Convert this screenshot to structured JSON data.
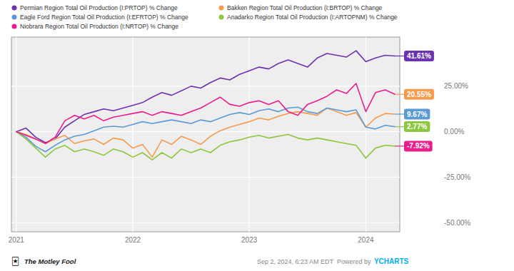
{
  "chart_data": {
    "type": "line",
    "categories": [
      "2021",
      null,
      null,
      null,
      null,
      null,
      null,
      null,
      null,
      null,
      null,
      null,
      "2022",
      null,
      null,
      null,
      null,
      null,
      null,
      null,
      null,
      null,
      null,
      null,
      "2023",
      null,
      null,
      null,
      null,
      null,
      null,
      null,
      null,
      null,
      null,
      null,
      "2024",
      null,
      null,
      null
    ],
    "series": [
      {
        "name": "Permian Region Total Oil Production (I:PRTOP) % Change",
        "color": "#6B33B0",
        "values": [
          0.0,
          2.0,
          -3.0,
          -6.0,
          -4.0,
          2.5,
          6.0,
          9.5,
          11.0,
          12.5,
          11.5,
          13.0,
          14.5,
          16.0,
          19.0,
          21.5,
          20.0,
          22.5,
          25.0,
          24.0,
          27.0,
          29.5,
          28.5,
          31.5,
          33.5,
          35.5,
          34.5,
          37.5,
          39.5,
          37.5,
          35.5,
          40.5,
          43.0,
          42.0,
          41.0,
          44.5,
          38.5,
          40.5,
          42.0,
          41.61
        ]
      },
      {
        "name": "Bakken Region Total Oil Production (I:BRTOP) % Change",
        "color": "#F59B4E",
        "values": [
          0.0,
          -1.5,
          -4.0,
          -6.5,
          -4.0,
          -2.0,
          -6.5,
          -5.0,
          -4.0,
          -7.0,
          -3.5,
          -4.5,
          -9.0,
          -7.0,
          -14.0,
          -4.5,
          -7.0,
          -2.5,
          -4.5,
          -7.0,
          -2.5,
          0.5,
          2.5,
          4.0,
          5.5,
          7.5,
          6.5,
          8.5,
          10.0,
          11.0,
          10.0,
          9.0,
          13.0,
          11.0,
          9.0,
          10.5,
          2.5,
          7.5,
          10.0,
          9.67
        ]
      },
      {
        "name": "Eagle Ford Region Total Oil Production (I:EFRTOP) % Change",
        "color": "#5B9BD5",
        "values": [
          0.0,
          -3.0,
          -8.0,
          -11.0,
          -7.5,
          -4.5,
          -2.5,
          -1.5,
          0.5,
          2.5,
          3.0,
          2.5,
          4.0,
          5.5,
          4.5,
          5.5,
          6.5,
          5.5,
          4.5,
          6.5,
          5.5,
          7.5,
          9.5,
          10.5,
          9.5,
          11.5,
          12.5,
          11.0,
          13.0,
          13.5,
          11.0,
          10.0,
          13.0,
          12.0,
          11.0,
          12.0,
          2.5,
          1.5,
          3.5,
          2.77
        ]
      },
      {
        "name": "Anadarko Region Total Oil Production (I:ARTOPNM) % Change",
        "color": "#8DC63F",
        "values": [
          0.0,
          -4.0,
          -9.0,
          -14.0,
          -9.5,
          -7.5,
          -11.0,
          -9.5,
          -11.0,
          -13.0,
          -9.5,
          -11.0,
          -14.0,
          -11.5,
          -15.5,
          -11.5,
          -14.5,
          -9.5,
          -11.5,
          -9.5,
          -11.5,
          -7.5,
          -5.5,
          -4.5,
          -3.0,
          -2.0,
          -3.5,
          -2.5,
          -1.5,
          -3.5,
          -4.5,
          -3.5,
          -4.5,
          -5.5,
          -6.5,
          -7.5,
          -14.5,
          -9.0,
          -7.5,
          -7.92
        ]
      },
      {
        "name": "Niobrara Region Total Oil Production (I:NRTOP) % Change",
        "color": "#E91E8C",
        "values": [
          0.0,
          -2.0,
          -4.0,
          -6.5,
          -3.0,
          6.0,
          9.0,
          7.0,
          9.0,
          6.0,
          8.0,
          9.0,
          10.0,
          11.0,
          9.0,
          11.0,
          10.0,
          9.0,
          11.0,
          13.0,
          16.0,
          19.0,
          15.0,
          14.0,
          16.0,
          17.0,
          15.0,
          17.0,
          11.0,
          9.0,
          15.0,
          17.0,
          19.5,
          23.0,
          21.0,
          26.5,
          11.0,
          21.5,
          23.0,
          20.55
        ]
      }
    ],
    "ylim": [
      -55,
      52
    ],
    "yticks": [
      {
        "value": -50,
        "label": "-50.00%"
      },
      {
        "value": -25,
        "label": "-25.00%"
      },
      {
        "value": 0,
        "label": "0.00%"
      },
      {
        "value": 25,
        "label": "25.00%"
      }
    ],
    "grid": true,
    "legend": "upper left",
    "annotations": [
      {
        "text": "41.61%",
        "value": 41.61,
        "color": "#6B33B0"
      },
      {
        "text": "20.55%",
        "value": 20.55,
        "color": "#F59B4E"
      },
      {
        "text": "9.67%",
        "value": 9.67,
        "color": "#5B9BD5"
      },
      {
        "text": "2.77%",
        "value": 2.77,
        "color": "#8DC63F"
      },
      {
        "text": "-7.92%",
        "value": -7.92,
        "color": "#E91E8C"
      }
    ],
    "footer": {
      "icon": "🃏",
      "logo": "The Motley Fool",
      "date": "Sep 2, 2024, 6:23 AM EDT  Powered by ",
      "source": "YCHARTS"
    }
  }
}
